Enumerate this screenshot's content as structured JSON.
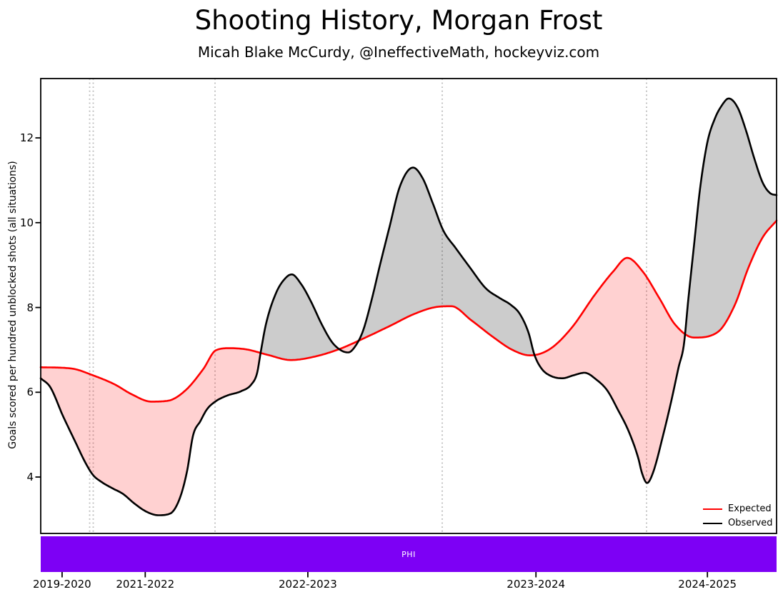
{
  "title": "Shooting History, Morgan Frost",
  "subtitle": "Micah Blake McCurdy, @IneffectiveMath, hockeyviz.com",
  "team_band": {
    "label": "PHI",
    "color": "#7d00f5",
    "text_color": "#ffffff"
  },
  "chart_data": {
    "type": "line",
    "title": "Shooting History, Morgan Frost",
    "ylabel": "Goals scored per hundred unblocked shots (all situations)",
    "xlabel": "",
    "ylim": [
      2.67,
      13.4
    ],
    "yticks": [
      12,
      10,
      8,
      6,
      4
    ],
    "xticks": [
      {
        "pos": 0.029,
        "label": "2019-2020"
      },
      {
        "pos": 0.142,
        "label": "2021-2022"
      },
      {
        "pos": 0.363,
        "label": "2022-2023"
      },
      {
        "pos": 0.673,
        "label": "2023-2024"
      },
      {
        "pos": 0.906,
        "label": "2024-2025"
      }
    ],
    "season_dividers": [
      0.0665,
      0.0714,
      0.2369,
      0.5456,
      0.8233
    ],
    "grid": "vertical-dotted",
    "legend_position": "lower right",
    "fill": {
      "observed_above_color": "rgba(0,0,0,0.2)",
      "observed_below_color": "rgba(255,0,0,0.18)"
    },
    "series": [
      {
        "name": "Expected",
        "color": "#ff0000",
        "points": [
          [
            0.0,
            6.59
          ],
          [
            0.042,
            6.56
          ],
          [
            0.071,
            6.4
          ],
          [
            0.1,
            6.19
          ],
          [
            0.124,
            5.95
          ],
          [
            0.15,
            5.78
          ],
          [
            0.173,
            5.8
          ],
          [
            0.197,
            6.05
          ],
          [
            0.221,
            6.55
          ],
          [
            0.238,
            6.99
          ],
          [
            0.257,
            7.04
          ],
          [
            0.28,
            7.01
          ],
          [
            0.309,
            6.88
          ],
          [
            0.34,
            6.76
          ],
          [
            0.372,
            6.84
          ],
          [
            0.406,
            7.02
          ],
          [
            0.44,
            7.28
          ],
          [
            0.474,
            7.56
          ],
          [
            0.508,
            7.85
          ],
          [
            0.537,
            8.01
          ],
          [
            0.558,
            8.03
          ],
          [
            0.585,
            7.7
          ],
          [
            0.615,
            7.3
          ],
          [
            0.641,
            7.0
          ],
          [
            0.665,
            6.87
          ],
          [
            0.692,
            7.02
          ],
          [
            0.721,
            7.51
          ],
          [
            0.753,
            8.3
          ],
          [
            0.778,
            8.85
          ],
          [
            0.797,
            9.17
          ],
          [
            0.818,
            8.85
          ],
          [
            0.841,
            8.21
          ],
          [
            0.862,
            7.6
          ],
          [
            0.888,
            7.29
          ],
          [
            0.92,
            7.42
          ],
          [
            0.943,
            8.05
          ],
          [
            0.962,
            8.95
          ],
          [
            0.981,
            9.65
          ],
          [
            1.0,
            10.05
          ]
        ]
      },
      {
        "name": "Observed",
        "color": "#000000",
        "points": [
          [
            0.0,
            6.33
          ],
          [
            0.013,
            6.12
          ],
          [
            0.03,
            5.45
          ],
          [
            0.047,
            4.83
          ],
          [
            0.061,
            4.33
          ],
          [
            0.071,
            4.05
          ],
          [
            0.083,
            3.88
          ],
          [
            0.098,
            3.73
          ],
          [
            0.112,
            3.6
          ],
          [
            0.127,
            3.38
          ],
          [
            0.144,
            3.18
          ],
          [
            0.16,
            3.1
          ],
          [
            0.176,
            3.14
          ],
          [
            0.189,
            3.5
          ],
          [
            0.199,
            4.15
          ],
          [
            0.207,
            4.98
          ],
          [
            0.217,
            5.32
          ],
          [
            0.226,
            5.6
          ],
          [
            0.238,
            5.79
          ],
          [
            0.253,
            5.92
          ],
          [
            0.273,
            6.03
          ],
          [
            0.286,
            6.18
          ],
          [
            0.294,
            6.45
          ],
          [
            0.299,
            6.95
          ],
          [
            0.306,
            7.6
          ],
          [
            0.32,
            8.35
          ],
          [
            0.333,
            8.7
          ],
          [
            0.341,
            8.78
          ],
          [
            0.354,
            8.55
          ],
          [
            0.367,
            8.15
          ],
          [
            0.382,
            7.6
          ],
          [
            0.396,
            7.18
          ],
          [
            0.409,
            6.98
          ],
          [
            0.418,
            6.94
          ],
          [
            0.428,
            7.1
          ],
          [
            0.438,
            7.45
          ],
          [
            0.45,
            8.2
          ],
          [
            0.461,
            9.0
          ],
          [
            0.474,
            9.9
          ],
          [
            0.488,
            10.85
          ],
          [
            0.506,
            11.3
          ],
          [
            0.519,
            11.05
          ],
          [
            0.533,
            10.45
          ],
          [
            0.547,
            9.82
          ],
          [
            0.564,
            9.4
          ],
          [
            0.583,
            8.95
          ],
          [
            0.605,
            8.45
          ],
          [
            0.624,
            8.22
          ],
          [
            0.639,
            8.06
          ],
          [
            0.651,
            7.85
          ],
          [
            0.663,
            7.4
          ],
          [
            0.671,
            6.88
          ],
          [
            0.681,
            6.55
          ],
          [
            0.694,
            6.38
          ],
          [
            0.709,
            6.33
          ],
          [
            0.724,
            6.4
          ],
          [
            0.739,
            6.46
          ],
          [
            0.755,
            6.3
          ],
          [
            0.77,
            6.04
          ],
          [
            0.784,
            5.6
          ],
          [
            0.799,
            5.08
          ],
          [
            0.812,
            4.45
          ],
          [
            0.817,
            4.1
          ],
          [
            0.824,
            3.86
          ],
          [
            0.832,
            4.1
          ],
          [
            0.846,
            5.0
          ],
          [
            0.857,
            5.8
          ],
          [
            0.867,
            6.6
          ],
          [
            0.874,
            7.12
          ],
          [
            0.88,
            8.18
          ],
          [
            0.888,
            9.5
          ],
          [
            0.896,
            10.8
          ],
          [
            0.906,
            11.9
          ],
          [
            0.916,
            12.45
          ],
          [
            0.925,
            12.75
          ],
          [
            0.935,
            12.93
          ],
          [
            0.947,
            12.72
          ],
          [
            0.958,
            12.2
          ],
          [
            0.97,
            11.5
          ],
          [
            0.981,
            10.95
          ],
          [
            0.991,
            10.7
          ],
          [
            1.0,
            10.65
          ]
        ]
      }
    ]
  }
}
